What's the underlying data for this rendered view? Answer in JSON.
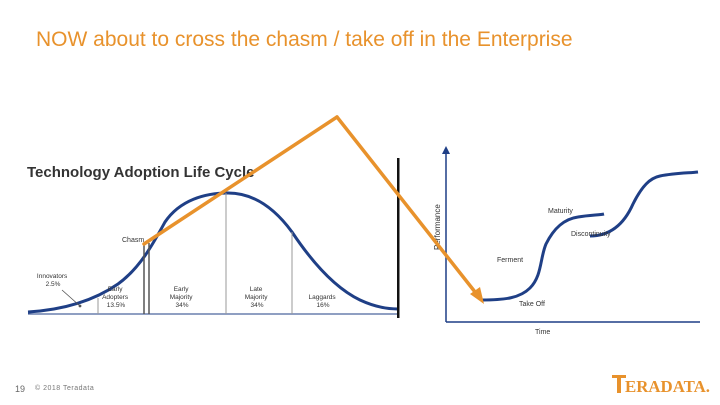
{
  "slide": {
    "title": "NOW about to cross the chasm / take off in the Enterprise",
    "number": "19",
    "copyright": "© 2018 Teradata",
    "brand_logo_text": "TERADATA.",
    "accent_color": "#e8922c",
    "curve_color": "#1f3f86"
  },
  "adoption_lifecycle": {
    "title": "Technology Adoption Life Cycle",
    "chasm_label": "Chasm",
    "segments": [
      {
        "name": "Innovators",
        "share": "2.5%"
      },
      {
        "name": "Early Adopters",
        "share": "13.5%"
      },
      {
        "name": "Early Majority",
        "share": "34%"
      },
      {
        "name": "Late Majority",
        "share": "34%"
      },
      {
        "name": "Laggards",
        "share": "16%"
      }
    ],
    "segment_lines": [
      [
        "Innovators",
        "2.5%"
      ],
      [
        "Early",
        "Adopters",
        "13.5%"
      ],
      [
        "Early",
        "Majority",
        "34%"
      ],
      [
        "Late",
        "Majority",
        "34%"
      ],
      [
        "Laggards",
        "16%"
      ]
    ]
  },
  "s_curve": {
    "y_axis_label": "Performance",
    "x_axis_label": "Time",
    "stages": [
      "Take Off",
      "Ferment",
      "Discontinuity",
      "Maturity"
    ]
  }
}
